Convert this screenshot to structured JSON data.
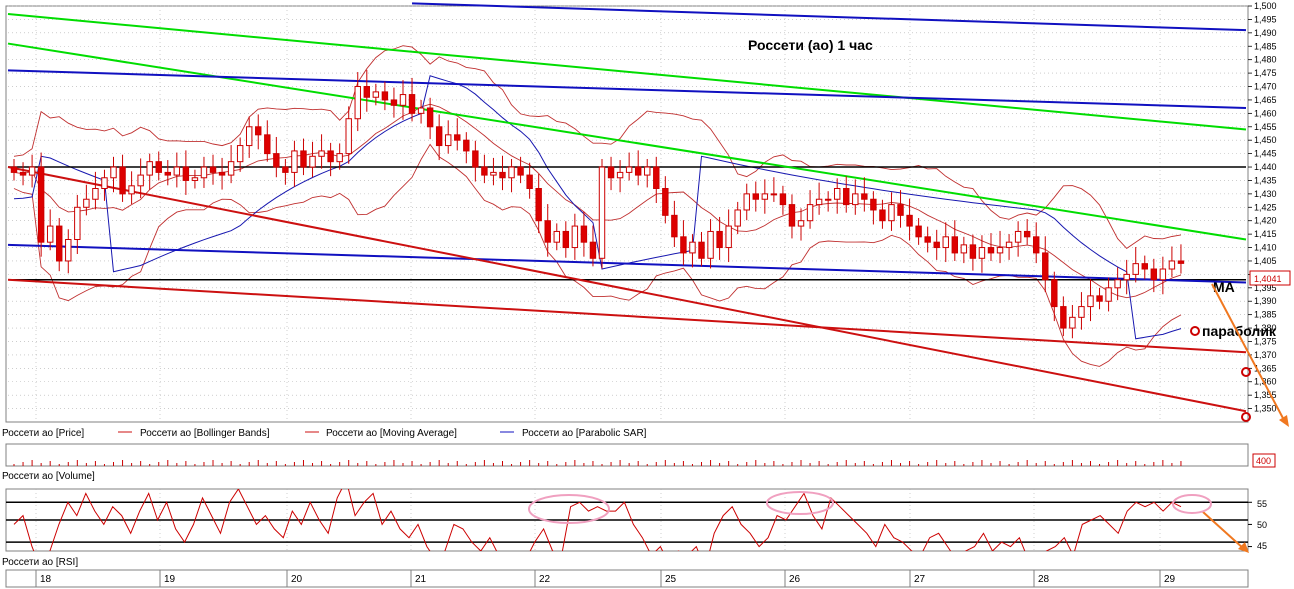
{
  "chart_data": {
    "type": "candlestick",
    "title": "Россети (ао)   1 час",
    "price_panel": {
      "ylim": [
        1.345,
        1.5
      ],
      "ytick_labels": [
        "1,350",
        "1,355",
        "1,360",
        "1,365",
        "1,370",
        "1,375",
        "1,380",
        "1,385",
        "1,390",
        "1,395",
        "1,400",
        "1,405",
        "1,410",
        "1,415",
        "1,420",
        "1,425",
        "1,430",
        "1,435",
        "1,440",
        "1,445",
        "1,450",
        "1,455",
        "1,460",
        "1,465",
        "1,470",
        "1,475",
        "1,480",
        "1,485",
        "1,490",
        "1,495",
        "1,500"
      ],
      "last_price_label": "1,4041",
      "legend": [
        "Россети ао [Price]",
        "Россети ао [Bollinger Bands]",
        "Россети ао [Moving Average]",
        "Россети ао [Parabolic SAR]"
      ],
      "candles_close": [
        1.438,
        1.437,
        1.44,
        1.412,
        1.418,
        1.405,
        1.413,
        1.425,
        1.428,
        1.432,
        1.436,
        1.44,
        1.43,
        1.433,
        1.437,
        1.442,
        1.438,
        1.437,
        1.44,
        1.435,
        1.436,
        1.44,
        1.438,
        1.437,
        1.442,
        1.448,
        1.455,
        1.452,
        1.445,
        1.44,
        1.438,
        1.446,
        1.44,
        1.444,
        1.446,
        1.442,
        1.445,
        1.458,
        1.47,
        1.466,
        1.468,
        1.465,
        1.463,
        1.467,
        1.46,
        1.462,
        1.455,
        1.448,
        1.452,
        1.45,
        1.446,
        1.44,
        1.437,
        1.438,
        1.436,
        1.44,
        1.437,
        1.432,
        1.42,
        1.412,
        1.416,
        1.41,
        1.418,
        1.412,
        1.406,
        1.44,
        1.436,
        1.438,
        1.44,
        1.437,
        1.44,
        1.432,
        1.422,
        1.414,
        1.408,
        1.412,
        1.406,
        1.416,
        1.41,
        1.418,
        1.424,
        1.43,
        1.428,
        1.43,
        1.43,
        1.426,
        1.418,
        1.42,
        1.426,
        1.428,
        1.428,
        1.432,
        1.426,
        1.43,
        1.428,
        1.424,
        1.42,
        1.426,
        1.422,
        1.418,
        1.414,
        1.412,
        1.41,
        1.414,
        1.408,
        1.411,
        1.406,
        1.41,
        1.408,
        1.41,
        1.412,
        1.416,
        1.414,
        1.408,
        1.398,
        1.388,
        1.38,
        1.384,
        1.388,
        1.392,
        1.39,
        1.395,
        1.398,
        1.4,
        1.404,
        1.402,
        1.398,
        1.402,
        1.405,
        1.4041
      ],
      "horizontal_lines": [
        1.44,
        1.398
      ],
      "trendlines": [
        {
          "color": "#00dd00",
          "from": [
            0,
            1.497
          ],
          "to": [
            131,
            1.454
          ]
        },
        {
          "color": "#00dd00",
          "from": [
            0,
            1.486
          ],
          "to": [
            131,
            1.413
          ]
        },
        {
          "color": "#1010c0",
          "from": [
            44,
            1.501
          ],
          "to": [
            131,
            1.491
          ]
        },
        {
          "color": "#1010c0",
          "from": [
            0,
            1.476
          ],
          "to": [
            131,
            1.462
          ]
        },
        {
          "color": "#1010c0",
          "from": [
            0,
            1.411
          ],
          "to": [
            131,
            1.397
          ]
        },
        {
          "color": "#cc1010",
          "from": [
            0,
            1.44
          ],
          "to": [
            131,
            1.349
          ]
        },
        {
          "color": "#cc1010",
          "from": [
            0,
            1.398
          ],
          "to": [
            131,
            1.371
          ]
        }
      ]
    },
    "volume_panel": {
      "legend": "Россети ао [Volume]",
      "last_value_label": "400"
    },
    "rsi_panel": {
      "legend": "Россети ао [RSI]",
      "ytick_labels": [
        "45",
        "50",
        "55"
      ],
      "ylim": [
        44,
        58
      ],
      "levels": [
        46,
        51,
        55
      ],
      "values": [
        50,
        52,
        45,
        40,
        44,
        50,
        55,
        52,
        57,
        53,
        50,
        54,
        52,
        48,
        53,
        57,
        51,
        55,
        49,
        46,
        50,
        56,
        52,
        48,
        55,
        58,
        54,
        50,
        52,
        49,
        47,
        53,
        50,
        55,
        51,
        48,
        56,
        60,
        52,
        55,
        57,
        50,
        53,
        49,
        47,
        50,
        45,
        42,
        44,
        50,
        49,
        46,
        44,
        47,
        43,
        41,
        39,
        42,
        46,
        49,
        44,
        43,
        54,
        55,
        53,
        54,
        53,
        53,
        55,
        50,
        47,
        43,
        45,
        41,
        44,
        43,
        45,
        40,
        48,
        52,
        54,
        50,
        48,
        45,
        47,
        52,
        51,
        54,
        57,
        52,
        49,
        56,
        54,
        52,
        50,
        48,
        45,
        50,
        47,
        46,
        44,
        43,
        47,
        48,
        45,
        42,
        44,
        45,
        48,
        44,
        46,
        45,
        47,
        42,
        40,
        44,
        45,
        47,
        43,
        50,
        51,
        52,
        50,
        48,
        53,
        55,
        54,
        55,
        53,
        55,
        54
      ]
    },
    "x_labels": [
      "18",
      "19",
      "20",
      "21",
      "22",
      "25",
      "26",
      "27",
      "28",
      "29"
    ],
    "annotations": [
      "MA",
      "параболик"
    ]
  }
}
